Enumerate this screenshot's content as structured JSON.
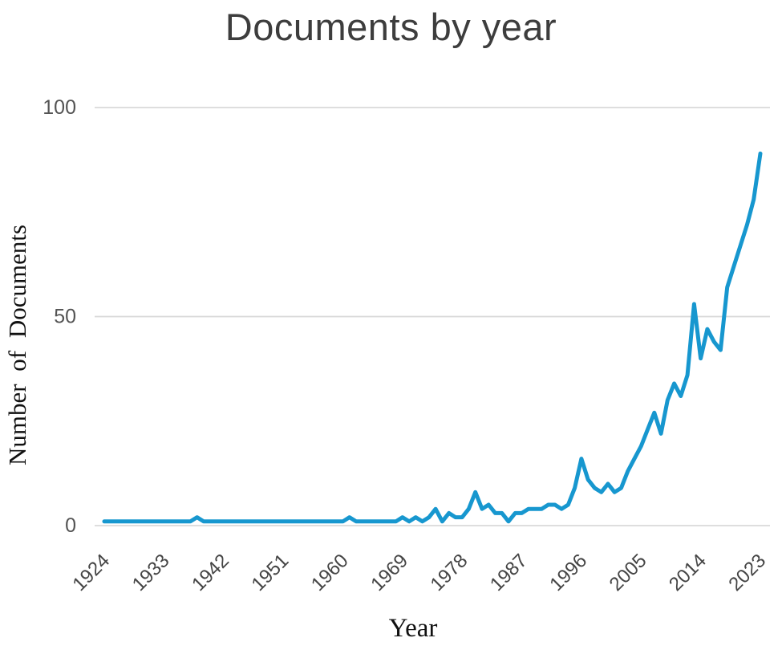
{
  "title": "Documents by year",
  "chart_data": {
    "type": "line",
    "title": "Documents by year",
    "xlabel": "Year",
    "ylabel": "Number of Documents",
    "x_start": 1924,
    "x_end": 2023,
    "x_tick_labels": [
      1924,
      1933,
      1942,
      1951,
      1960,
      1969,
      1978,
      1987,
      1996,
      2005,
      2014,
      2023
    ],
    "y_ticks": [
      0,
      50,
      100
    ],
    "ylim": [
      0,
      100
    ],
    "grid": "horizontal",
    "legend": "none",
    "line_color": "#1797cf",
    "series": [
      {
        "name": "Documents",
        "values": [
          1,
          1,
          1,
          1,
          1,
          1,
          1,
          1,
          1,
          1,
          1,
          1,
          1,
          1,
          2,
          1,
          1,
          1,
          1,
          1,
          1,
          1,
          1,
          1,
          1,
          1,
          1,
          1,
          1,
          1,
          1,
          1,
          1,
          1,
          1,
          1,
          1,
          2,
          1,
          1,
          1,
          1,
          1,
          1,
          1,
          2,
          1,
          2,
          1,
          2,
          4,
          1,
          3,
          2,
          2,
          4,
          8,
          4,
          5,
          3,
          3,
          1,
          3,
          3,
          4,
          4,
          4,
          5,
          5,
          4,
          5,
          9,
          16,
          11,
          9,
          8,
          10,
          8,
          9,
          13,
          16,
          19,
          23,
          27,
          22,
          30,
          34,
          31,
          36,
          53,
          40,
          47,
          44,
          42,
          57,
          62,
          67,
          72,
          78,
          89
        ]
      }
    ]
  }
}
